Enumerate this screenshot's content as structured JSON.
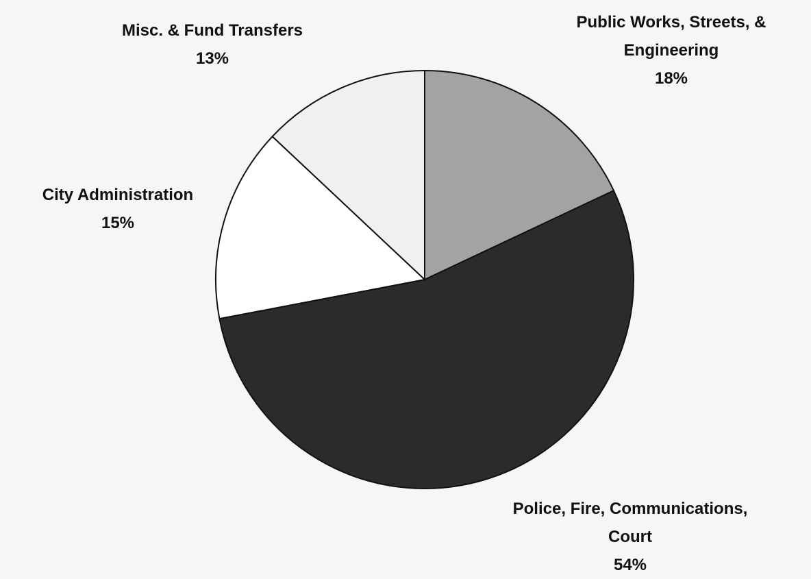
{
  "chart_data": {
    "type": "pie",
    "categories": [
      "Public Works, Streets, & Engineering",
      "Police, Fire, Communications, Court",
      "City Administration",
      "Misc. & Fund Transfers"
    ],
    "values": [
      18,
      54,
      15,
      13
    ],
    "value_labels": [
      "18%",
      "54%",
      "15%",
      "13%"
    ],
    "colors": [
      "#a3a3a3",
      "#2b2b2b",
      "#ffffff",
      "#f1f0ee"
    ]
  }
}
